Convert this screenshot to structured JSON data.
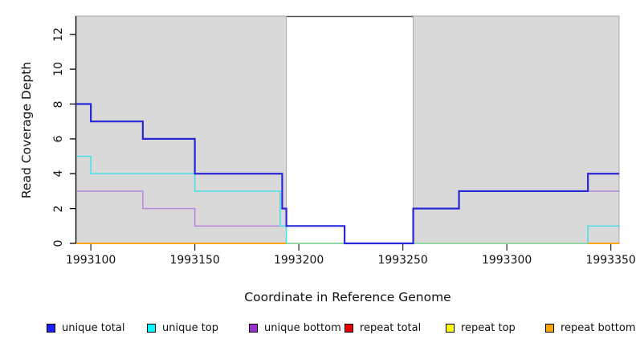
{
  "chart_data": {
    "type": "line",
    "subtype": "step",
    "title": "",
    "xlabel": "Coordinate in Reference Genome",
    "ylabel": "Read Coverage Depth",
    "xlim": [
      1993093,
      1993354
    ],
    "ylim": [
      0,
      13.05
    ],
    "grid": false,
    "x_ticks": [
      1993100,
      1993150,
      1993200,
      1993250,
      1993300,
      1993350
    ],
    "y_ticks": [
      0,
      2,
      4,
      6,
      8,
      10,
      12
    ],
    "background_color": "#ffffff",
    "shaded_regions": [
      {
        "x0": 1993093,
        "x1": 1993194,
        "color": "#d9d9d9"
      },
      {
        "x0": 1993255,
        "x1": 1993354,
        "color": "#d9d9d9"
      }
    ],
    "frame": {
      "top_border_color": "#555555",
      "region_border_color": "#a8a8a8",
      "axis_color": "#000000"
    },
    "series": [
      {
        "name": "repeat total",
        "color": "#e60000",
        "segments": [
          [
            [
              1993093,
              0
            ],
            [
              1993194,
              0
            ]
          ],
          [
            [
              1993339,
              0
            ],
            [
              1993354,
              0
            ]
          ]
        ]
      },
      {
        "name": "repeat top",
        "color": "#ffff00",
        "segments": [
          [
            [
              1993093,
              0
            ],
            [
              1993194,
              0
            ]
          ],
          [
            [
              1993339,
              0
            ],
            [
              1993354,
              0
            ]
          ]
        ]
      },
      {
        "name": "repeat bottom",
        "color": "#ffa500",
        "segments": [
          [
            [
              1993093,
              0
            ],
            [
              1993194,
              0
            ]
          ],
          [
            [
              1993339,
              0
            ],
            [
              1993354,
              0
            ]
          ]
        ]
      },
      {
        "name": "unique bottom",
        "color": "#b486dd",
        "segments": [
          [
            [
              1993093,
              3
            ],
            [
              1993125,
              2
            ],
            [
              1993150,
              1
            ],
            [
              1993222,
              0
            ],
            [
              1993255,
              2
            ],
            [
              1993277,
              3
            ],
            [
              1993354,
              3
            ]
          ]
        ]
      },
      {
        "name": "unique top",
        "color": "#48dfe8",
        "segments": [
          [
            [
              1993093,
              5
            ],
            [
              1993100,
              4
            ],
            [
              1993150,
              3
            ],
            [
              1993191,
              1
            ],
            [
              1993194,
              0
            ],
            [
              1993339,
              1
            ],
            [
              1993354,
              1
            ]
          ]
        ]
      },
      {
        "name": "unlabeled zero line",
        "color": "#8fcf8f",
        "segments": [
          [
            [
              1993194,
              0
            ],
            [
              1993339,
              0
            ]
          ]
        ]
      },
      {
        "name": "unique total",
        "color": "#2828d8",
        "segments": [
          [
            [
              1993093,
              8
            ],
            [
              1993100,
              7
            ],
            [
              1993125,
              6
            ],
            [
              1993150,
              4
            ],
            [
              1993192,
              2
            ],
            [
              1993194,
              1
            ],
            [
              1993222,
              0
            ],
            [
              1993255,
              2
            ],
            [
              1993277,
              3
            ],
            [
              1993339,
              4
            ],
            [
              1993354,
              4
            ]
          ]
        ]
      }
    ],
    "legend": {
      "position": "bottom",
      "entries": [
        {
          "label": "unique total",
          "swatch": "#1f1fff"
        },
        {
          "label": "unique top",
          "swatch": "#00ffff"
        },
        {
          "label": "unique bottom",
          "swatch": "#9932cc"
        },
        {
          "label": "repeat total",
          "swatch": "#e60000"
        },
        {
          "label": "repeat top",
          "swatch": "#ffff00"
        },
        {
          "label": "repeat bottom",
          "swatch": "#ffa500"
        }
      ]
    }
  }
}
